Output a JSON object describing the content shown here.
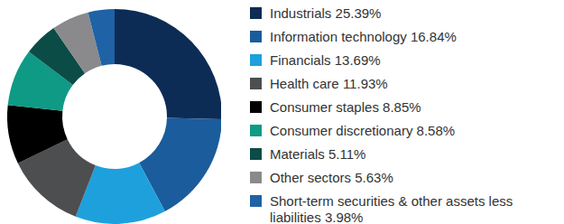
{
  "chart_data": {
    "type": "donut",
    "categories": [
      "Industrials",
      "Information technology",
      "Financials",
      "Health care",
      "Consumer staples",
      "Consumer discretionary",
      "Materials",
      "Other sectors",
      "Short-term securities & other assets less liabilities"
    ],
    "values": [
      25.39,
      16.84,
      13.69,
      11.93,
      8.85,
      8.58,
      5.11,
      5.63,
      3.98
    ],
    "value_labels": [
      "25.39%",
      "16.84%",
      "13.69%",
      "11.93%",
      "8.85%",
      "8.58%",
      "5.11%",
      "5.63%",
      "3.98%"
    ],
    "colors": [
      "#0c2c56",
      "#1b5c9c",
      "#1ea0dd",
      "#4d4e50",
      "#000000",
      "#0f9a85",
      "#0b4c47",
      "#8a8a8c",
      "#1f62a5"
    ],
    "legend": "right"
  }
}
